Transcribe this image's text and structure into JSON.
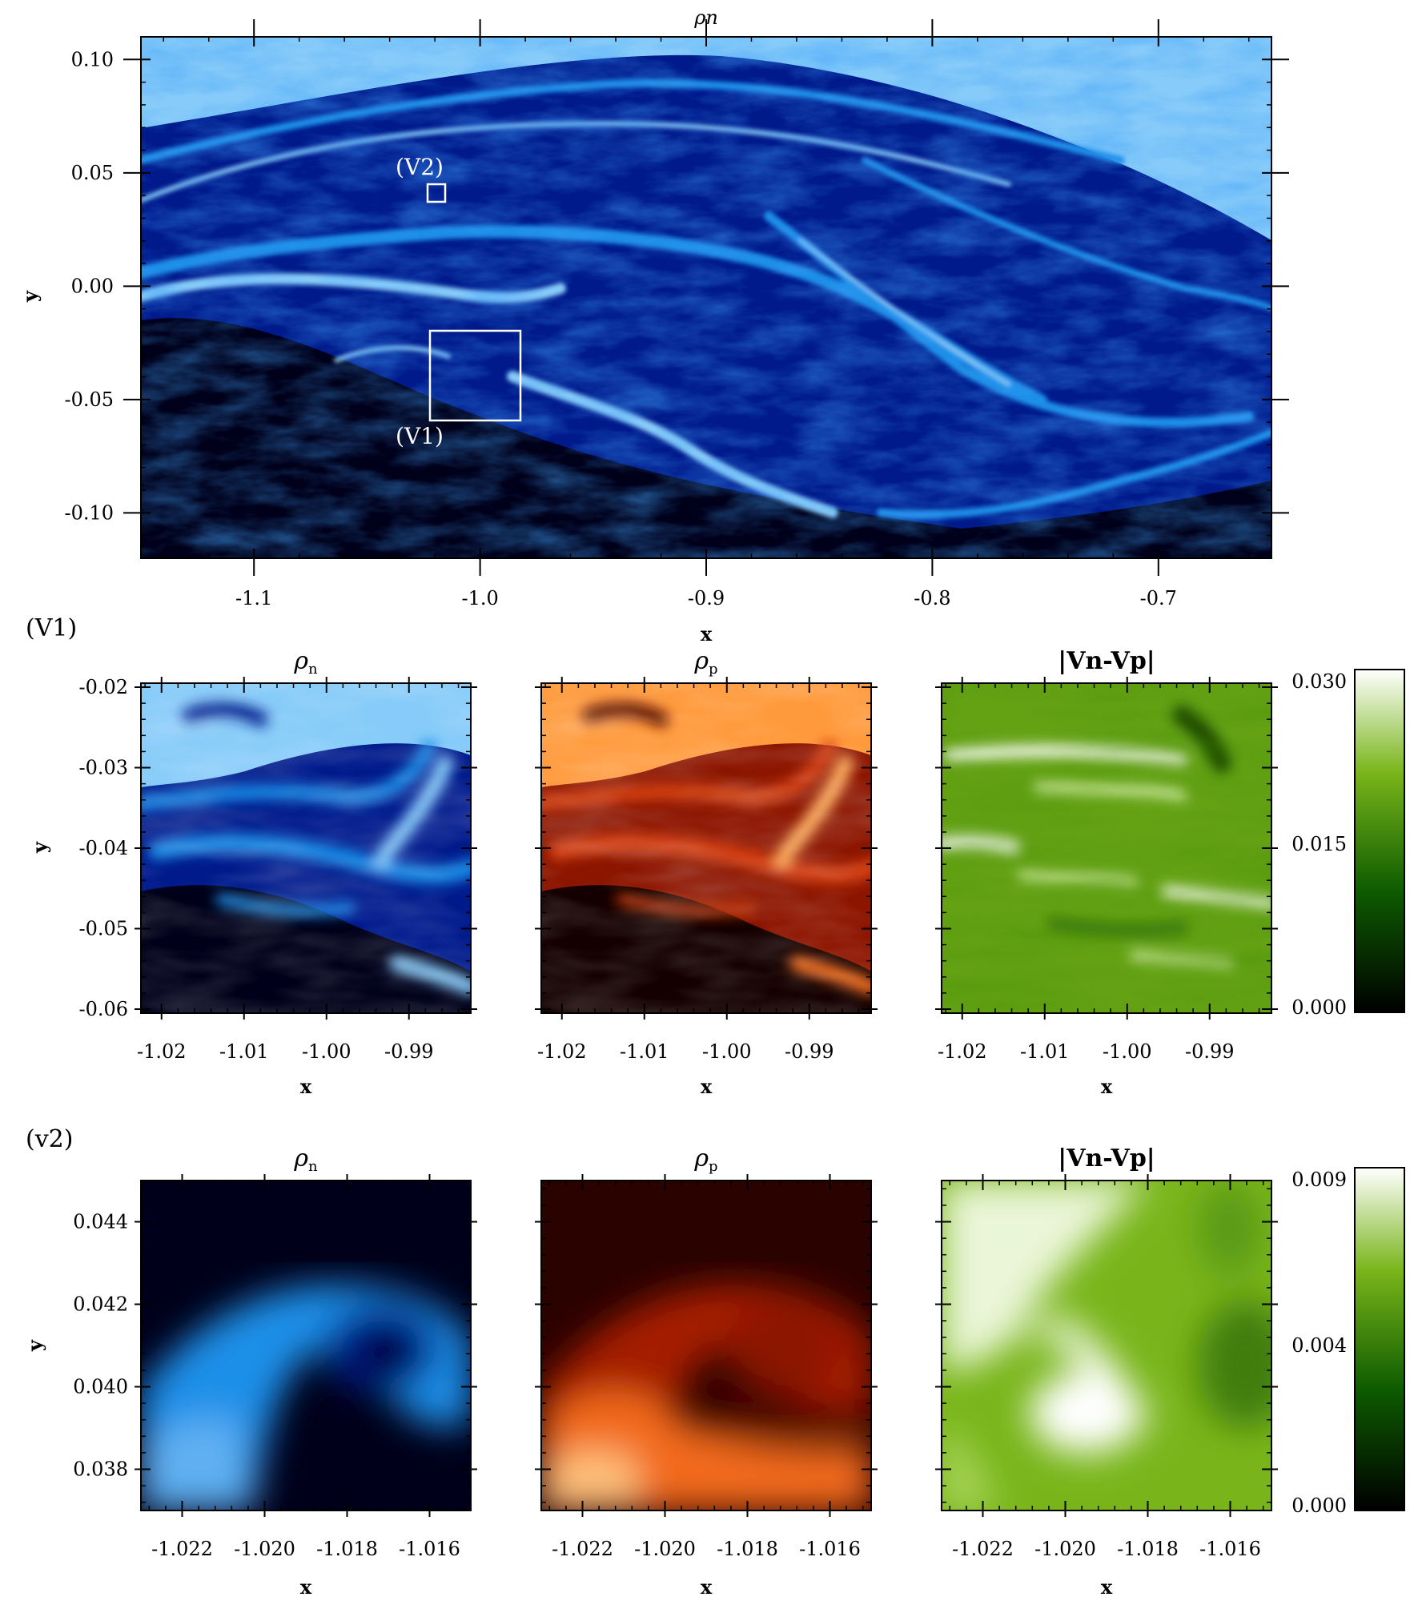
{
  "figure": {
    "top_panel": {
      "title": "ρn",
      "xlabel": "x",
      "ylabel": "y",
      "xlim": [
        -1.15,
        -0.65
      ],
      "ylim": [
        -0.12,
        0.11
      ],
      "xticks": [
        -1.1,
        -1.0,
        -0.9,
        -0.8,
        -0.7
      ],
      "xtick_labels": [
        "-1.1",
        "-1.0",
        "-0.9",
        "-0.8",
        "-0.7"
      ],
      "yticks": [
        0.1,
        0.05,
        0.0,
        -0.05,
        -0.1
      ],
      "ytick_labels": [
        "0.10",
        "0.05",
        "0.00",
        "-0.05",
        "-0.10"
      ],
      "boxes": [
        {
          "label": "(V2)",
          "x": [
            -1.022,
            -1.014
          ],
          "y": [
            0.037,
            0.046
          ]
        },
        {
          "label": "(V1)",
          "x": [
            -1.022,
            -0.982
          ],
          "y": [
            -0.06,
            -0.02
          ]
        }
      ]
    },
    "row_v1": {
      "row_label": "(V1)",
      "panels": [
        {
          "title_main": "ρ",
          "title_sub": "n",
          "colormap": "blue"
        },
        {
          "title_main": "ρ",
          "title_sub": "p",
          "colormap": "red"
        },
        {
          "title_main": "|Vn-Vp|",
          "title_sub": "",
          "colormap": "green"
        }
      ],
      "xlabel": "x",
      "ylabel": "y",
      "xlim": [
        -1.0225,
        -0.9825
      ],
      "ylim": [
        -0.0605,
        -0.0195
      ],
      "xticks": [
        -1.02,
        -1.01,
        -1.0,
        -0.99
      ],
      "xtick_labels": [
        "-1.02",
        "-1.01",
        "-1.00",
        "-0.99"
      ],
      "yticks": [
        -0.02,
        -0.03,
        -0.04,
        -0.05,
        -0.06
      ],
      "ytick_labels": [
        "-0.02",
        "-0.03",
        "-0.04",
        "-0.05",
        "-0.06"
      ],
      "colorbar": {
        "min": 0.0,
        "max": 0.03,
        "tick_labels": [
          "0.030",
          "0.015",
          "0.000"
        ]
      }
    },
    "row_v2": {
      "row_label": "(v2)",
      "panels": [
        {
          "title_main": "ρ",
          "title_sub": "n",
          "colormap": "blue"
        },
        {
          "title_main": "ρ",
          "title_sub": "p",
          "colormap": "red"
        },
        {
          "title_main": "|Vn-Vp|",
          "title_sub": "",
          "colormap": "green"
        }
      ],
      "xlabel": "x",
      "ylabel": "y",
      "xlim": [
        -1.023,
        -1.015
      ],
      "ylim": [
        0.037,
        0.045
      ],
      "xticks": [
        -1.022,
        -1.02,
        -1.018,
        -1.016
      ],
      "xtick_labels": [
        "-1.022",
        "-1.020",
        "-1.018",
        "-1.016"
      ],
      "yticks": [
        0.044,
        0.042,
        0.04,
        0.038
      ],
      "ytick_labels": [
        "0.044",
        "0.042",
        "0.040",
        "0.038"
      ],
      "colorbar": {
        "min": 0.0,
        "max": 0.009,
        "tick_labels": [
          "0.009",
          "0.004",
          "0.000"
        ]
      }
    }
  },
  "colors": {
    "blue_map": [
      "#00001a",
      "#001a8c",
      "#1f8fe8",
      "#86cbf9"
    ],
    "red_map": [
      "#140000",
      "#8c1500",
      "#f26a1a",
      "#ffc07a"
    ],
    "green_map": [
      "#000000",
      "#0d5a00",
      "#79b51a",
      "#ffffff"
    ],
    "box_outline": "#ffffff"
  },
  "chart_data": [
    {
      "type": "heatmap",
      "title": "ρn",
      "xlabel": "x",
      "ylabel": "y",
      "xlim": [
        -1.15,
        -0.65
      ],
      "ylim": [
        -0.12,
        0.11
      ],
      "grid": false
    },
    {
      "type": "heatmap",
      "title": "ρn",
      "xlabel": "x",
      "ylabel": "y",
      "xlim": [
        -1.0225,
        -0.9825
      ],
      "ylim": [
        -0.0605,
        -0.0195
      ]
    },
    {
      "type": "heatmap",
      "title": "ρp",
      "xlabel": "x",
      "xlim": [
        -1.0225,
        -0.9825
      ],
      "ylim": [
        -0.0605,
        -0.0195
      ]
    },
    {
      "type": "heatmap",
      "title": "|Vn-Vp|",
      "xlabel": "x",
      "xlim": [
        -1.0225,
        -0.9825
      ],
      "ylim": [
        -0.0605,
        -0.0195
      ],
      "colorbar_range": [
        0.0,
        0.03
      ]
    },
    {
      "type": "heatmap",
      "title": "ρn",
      "xlabel": "x",
      "ylabel": "y",
      "xlim": [
        -1.023,
        -1.015
      ],
      "ylim": [
        0.037,
        0.045
      ]
    },
    {
      "type": "heatmap",
      "title": "ρp",
      "xlabel": "x",
      "xlim": [
        -1.023,
        -1.015
      ],
      "ylim": [
        0.037,
        0.045
      ]
    },
    {
      "type": "heatmap",
      "title": "|Vn-Vp|",
      "xlabel": "x",
      "xlim": [
        -1.023,
        -1.015
      ],
      "ylim": [
        0.037,
        0.045
      ],
      "colorbar_range": [
        0.0,
        0.009
      ]
    }
  ]
}
